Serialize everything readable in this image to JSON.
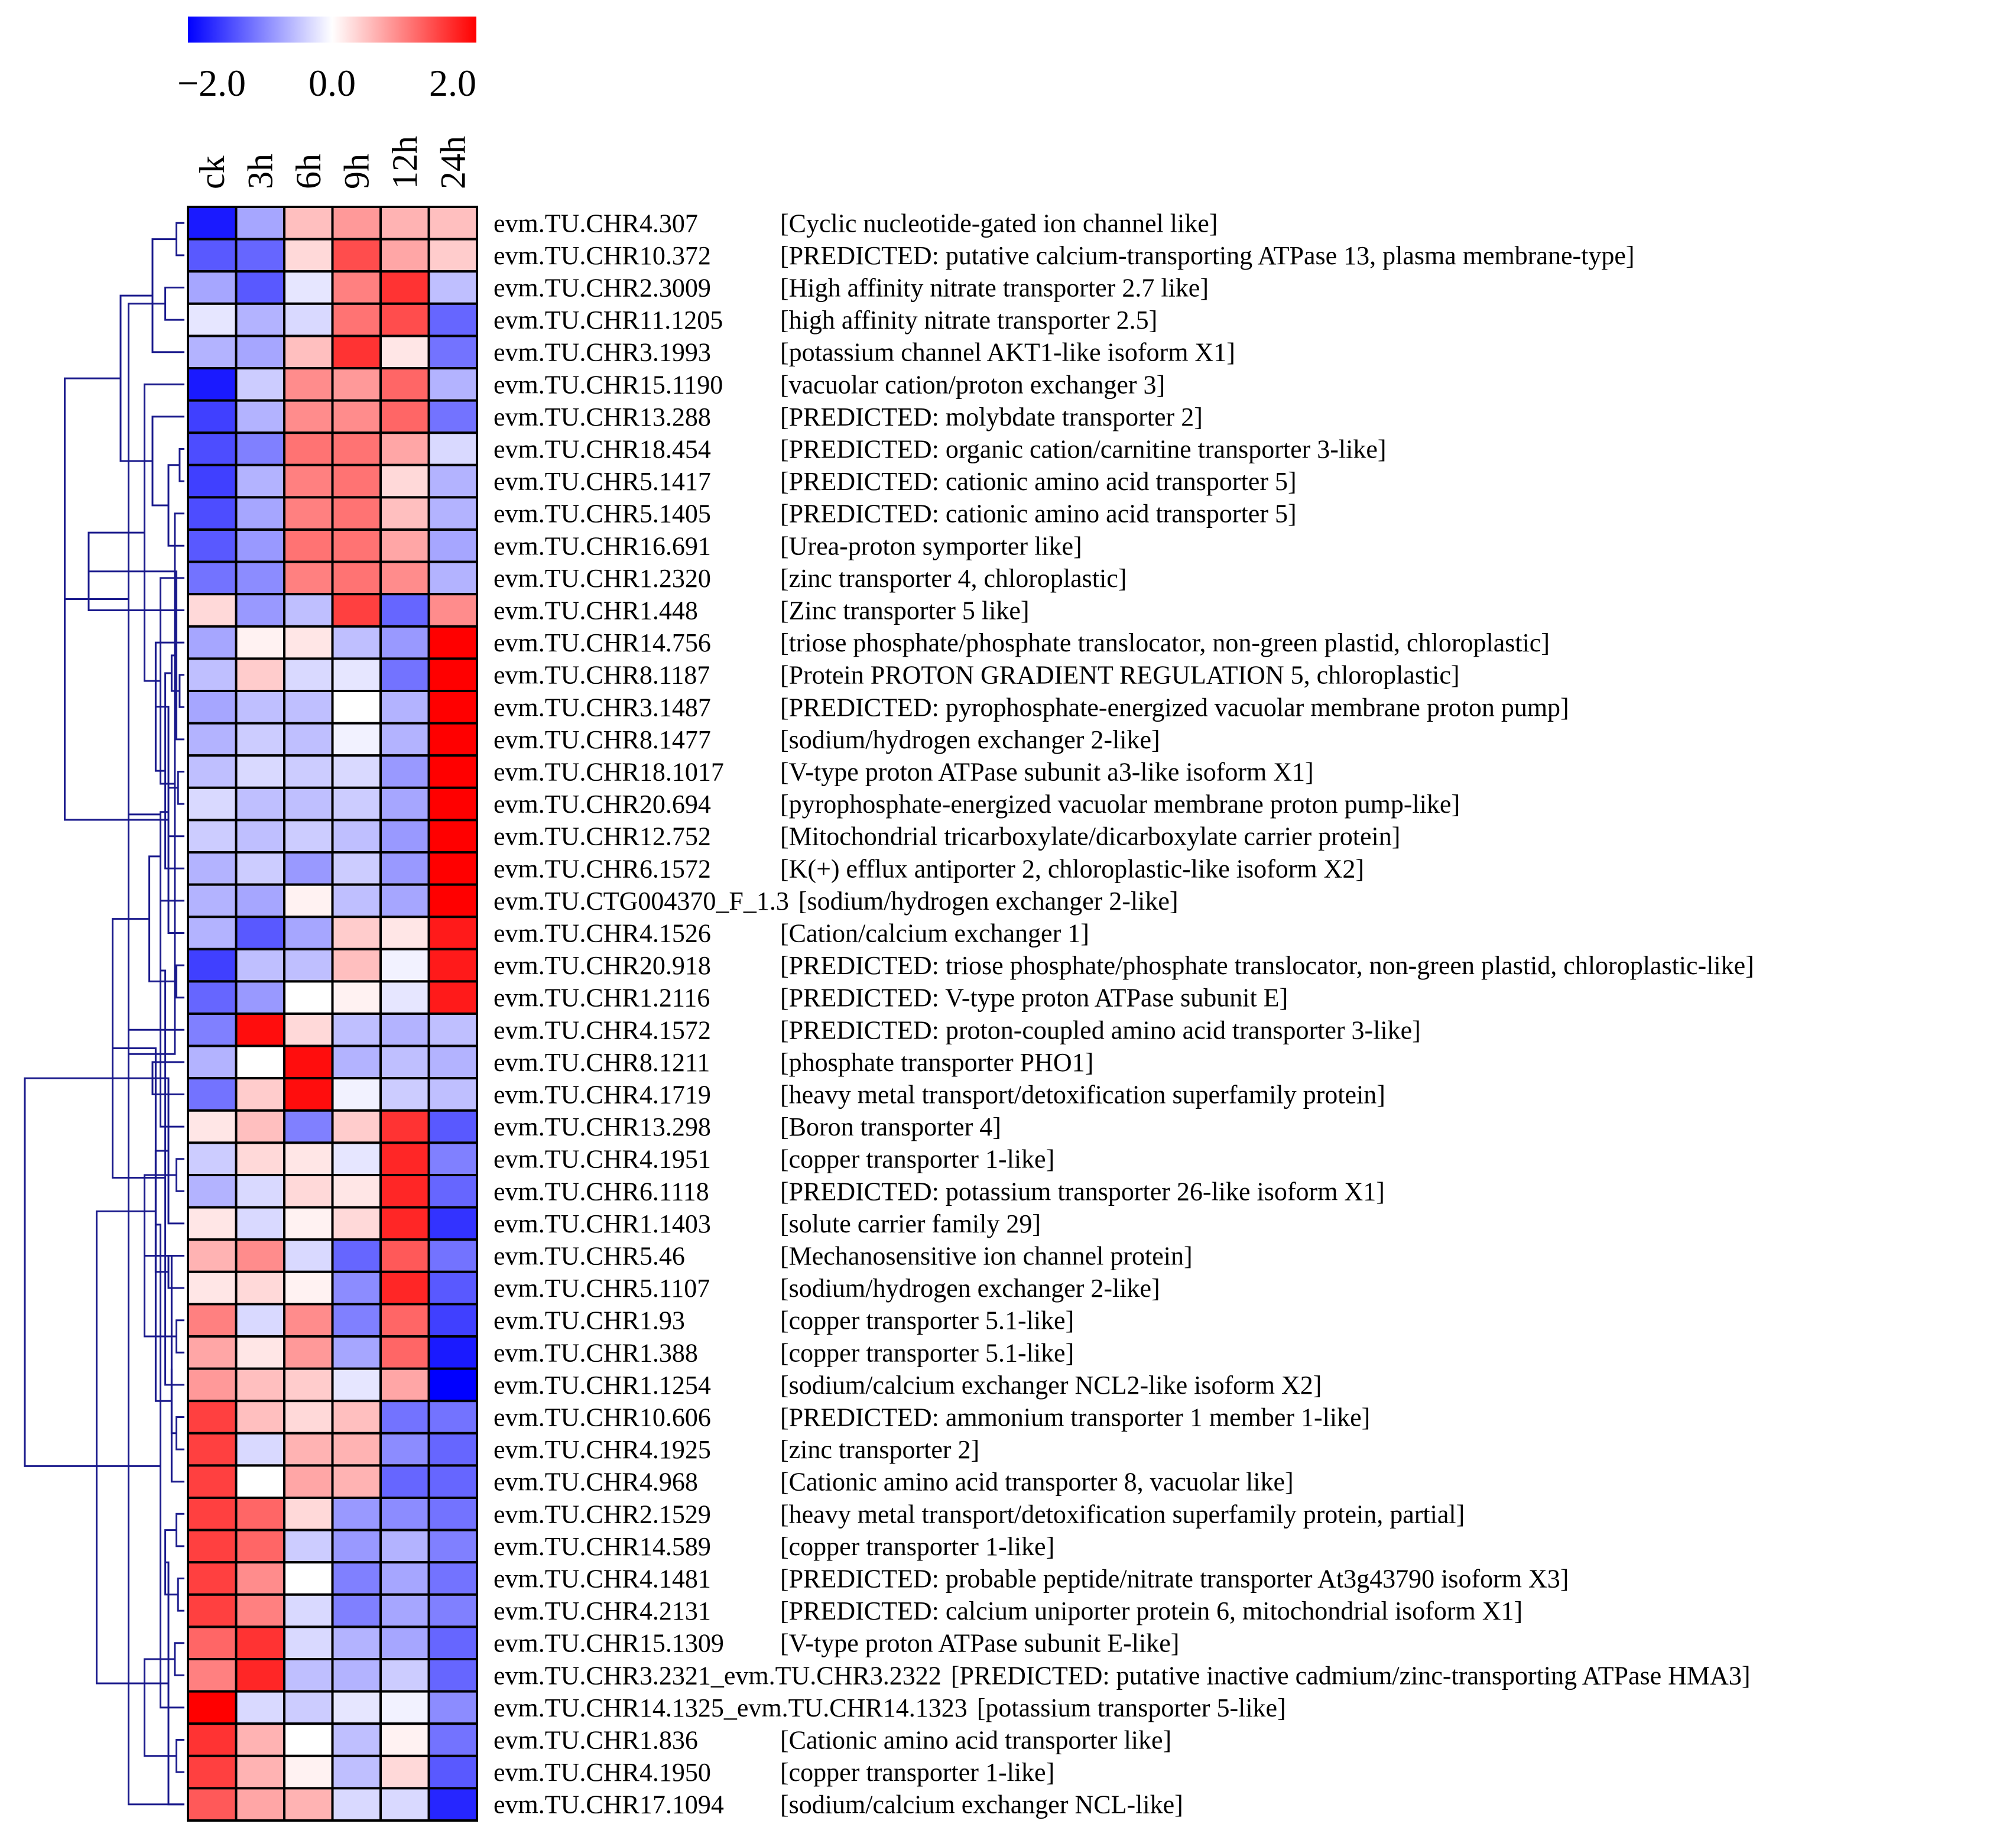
{
  "chart_data": {
    "type": "heatmap",
    "color_scale": {
      "min": -2.0,
      "max": 2.0,
      "low_color": "#0000ff",
      "mid_color": "#ffffff",
      "high_color": "#ff0000",
      "tick_labels": [
        "−2.0",
        "0.0",
        "2.0"
      ]
    },
    "columns": [
      "ck",
      "3h",
      "6h",
      "9h",
      "12h",
      "24h"
    ],
    "rows": [
      {
        "id": "evm.TU.CHR4.307",
        "desc": "[Cyclic nucleotide-gated ion channel like]",
        "values": [
          -1.8,
          -0.7,
          0.5,
          0.8,
          0.6,
          0.5
        ]
      },
      {
        "id": "evm.TU.CHR10.372",
        "desc": "[PREDICTED: putative calcium-transporting ATPase 13, plasma membrane-type]",
        "values": [
          -1.3,
          -1.2,
          0.3,
          1.4,
          0.7,
          0.4
        ]
      },
      {
        "id": "evm.TU.CHR2.3009",
        "desc": "[High affinity nitrate transporter 2.7 like]",
        "values": [
          -0.7,
          -1.3,
          -0.2,
          1.0,
          1.6,
          -0.5
        ]
      },
      {
        "id": "evm.TU.CHR11.1205",
        "desc": "[high affinity nitrate transporter 2.5]",
        "values": [
          -0.2,
          -0.6,
          -0.3,
          1.1,
          1.4,
          -1.2
        ]
      },
      {
        "id": "evm.TU.CHR3.1993",
        "desc": "[potassium channel AKT1-like isoform X1]",
        "values": [
          -0.6,
          -0.7,
          0.5,
          1.6,
          0.2,
          -1.1
        ]
      },
      {
        "id": "evm.TU.CHR15.1190",
        "desc": "[vacuolar cation/proton exchanger 3]",
        "values": [
          -1.8,
          -0.4,
          0.9,
          0.8,
          1.2,
          -0.6
        ]
      },
      {
        "id": "evm.TU.CHR13.288",
        "desc": "[PREDICTED: molybdate transporter 2]",
        "values": [
          -1.5,
          -0.6,
          0.9,
          0.9,
          1.2,
          -1.1
        ]
      },
      {
        "id": "evm.TU.CHR18.454",
        "desc": "[PREDICTED: organic cation/carnitine transporter 3-like]",
        "values": [
          -1.4,
          -1.0,
          1.1,
          1.1,
          0.7,
          -0.3
        ]
      },
      {
        "id": "evm.TU.CHR5.1417",
        "desc": "[PREDICTED: cationic amino acid transporter 5]",
        "values": [
          -1.5,
          -0.6,
          1.0,
          1.1,
          0.3,
          -0.6
        ]
      },
      {
        "id": "evm.TU.CHR5.1405",
        "desc": "[PREDICTED: cationic amino acid transporter 5]",
        "values": [
          -1.4,
          -0.7,
          1.0,
          1.1,
          0.5,
          -0.6
        ]
      },
      {
        "id": "evm.TU.CHR16.691",
        "desc": "[Urea-proton symporter like]",
        "values": [
          -1.3,
          -0.8,
          1.1,
          1.1,
          0.7,
          -0.7
        ]
      },
      {
        "id": "evm.TU.CHR1.2320",
        "desc": "[zinc transporter 4, chloroplastic]",
        "values": [
          -1.1,
          -0.9,
          1.0,
          1.1,
          0.9,
          -0.6
        ]
      },
      {
        "id": "evm.TU.CHR1.448",
        "desc": "[Zinc transporter 5 like]",
        "values": [
          0.3,
          -0.8,
          -0.5,
          1.5,
          -1.2,
          0.9
        ]
      },
      {
        "id": "evm.TU.CHR14.756",
        "desc": "[triose phosphate/phosphate translocator, non-green plastid, chloroplastic]",
        "values": [
          -0.7,
          0.1,
          0.2,
          -0.5,
          -0.8,
          2.0
        ]
      },
      {
        "id": "evm.TU.CHR8.1187",
        "desc": "[Protein PROTON GRADIENT REGULATION 5, chloroplastic]",
        "values": [
          -0.5,
          0.4,
          -0.3,
          -0.2,
          -1.1,
          2.0
        ]
      },
      {
        "id": "evm.TU.CHR3.1487",
        "desc": "[PREDICTED: pyrophosphate-energized vacuolar membrane proton pump]",
        "values": [
          -0.7,
          -0.5,
          -0.5,
          0.0,
          -0.6,
          2.0
        ]
      },
      {
        "id": "evm.TU.CHR8.1477",
        "desc": "[sodium/hydrogen exchanger 2-like]",
        "values": [
          -0.6,
          -0.4,
          -0.5,
          -0.1,
          -0.6,
          2.0
        ]
      },
      {
        "id": "evm.TU.CHR18.1017",
        "desc": "[V-type proton ATPase subunit a3-like isoform X1]",
        "values": [
          -0.5,
          -0.3,
          -0.4,
          -0.3,
          -0.8,
          2.0
        ]
      },
      {
        "id": "evm.TU.CHR20.694",
        "desc": "[pyrophosphate-energized vacuolar membrane proton pump-like]",
        "values": [
          -0.3,
          -0.5,
          -0.5,
          -0.4,
          -0.7,
          2.0
        ]
      },
      {
        "id": "evm.TU.CHR12.752",
        "desc": "[Mitochondrial tricarboxylate/dicarboxylate carrier protein]",
        "values": [
          -0.4,
          -0.5,
          -0.4,
          -0.5,
          -0.8,
          2.0
        ]
      },
      {
        "id": "evm.TU.CHR6.1572",
        "desc": "[K(+) efflux antiporter 2, chloroplastic-like isoform X2]",
        "values": [
          -0.6,
          -0.4,
          -0.8,
          -0.4,
          -0.8,
          2.0
        ]
      },
      {
        "id": "evm.TU.CTG004370_F_1.3",
        "desc": "[sodium/hydrogen exchanger 2-like]",
        "values": [
          -0.6,
          -0.7,
          0.1,
          -0.5,
          -0.7,
          2.0
        ]
      },
      {
        "id": "evm.TU.CHR4.1526",
        "desc": "[Cation/calcium exchanger 1]",
        "values": [
          -0.6,
          -1.3,
          -0.7,
          0.4,
          0.2,
          1.8
        ]
      },
      {
        "id": "evm.TU.CHR20.918",
        "desc": "[PREDICTED: triose phosphate/phosphate translocator, non-green plastid, chloroplastic-like]",
        "values": [
          -1.5,
          -0.5,
          -0.5,
          0.5,
          -0.1,
          1.8
        ]
      },
      {
        "id": "evm.TU.CHR1.2116",
        "desc": "[PREDICTED: V-type proton ATPase subunit E]",
        "values": [
          -1.2,
          -0.8,
          0.0,
          0.1,
          -0.2,
          1.8
        ]
      },
      {
        "id": "evm.TU.CHR4.1572",
        "desc": "[PREDICTED: proton-coupled amino acid transporter 3-like]",
        "values": [
          -1.0,
          1.9,
          0.3,
          -0.5,
          -0.6,
          -0.5
        ]
      },
      {
        "id": "evm.TU.CHR8.1211",
        "desc": "[phosphate transporter PHO1]",
        "values": [
          -0.6,
          0.0,
          1.9,
          -0.6,
          -0.5,
          -0.6
        ]
      },
      {
        "id": "evm.TU.CHR4.1719",
        "desc": "[heavy metal transport/detoxification superfamily protein]",
        "values": [
          -1.1,
          0.4,
          1.9,
          -0.1,
          -0.4,
          -0.5
        ]
      },
      {
        "id": "evm.TU.CHR13.298",
        "desc": "[Boron transporter 4]",
        "values": [
          0.2,
          0.5,
          -1.0,
          0.4,
          1.6,
          -1.3
        ]
      },
      {
        "id": "evm.TU.CHR4.1951",
        "desc": "[copper transporter 1-like]",
        "values": [
          -0.4,
          0.3,
          0.2,
          -0.2,
          1.7,
          -1.0
        ]
      },
      {
        "id": "evm.TU.CHR6.1118",
        "desc": "[PREDICTED: potassium transporter 26-like isoform X1]",
        "values": [
          -0.6,
          -0.3,
          0.3,
          0.2,
          1.7,
          -1.2
        ]
      },
      {
        "id": "evm.TU.CHR1.1403",
        "desc": "[solute carrier family 29]",
        "values": [
          0.2,
          -0.3,
          0.1,
          0.3,
          1.7,
          -1.6
        ]
      },
      {
        "id": "evm.TU.CHR5.46",
        "desc": "[Mechanosensitive ion channel protein]",
        "values": [
          0.6,
          0.9,
          -0.3,
          -1.2,
          1.3,
          -1.1
        ]
      },
      {
        "id": "evm.TU.CHR5.1107",
        "desc": "[sodium/hydrogen exchanger 2-like]",
        "values": [
          0.2,
          0.3,
          0.1,
          -0.9,
          1.7,
          -1.3
        ]
      },
      {
        "id": "evm.TU.CHR1.93",
        "desc": "[copper transporter 5.1-like]",
        "values": [
          1.0,
          -0.3,
          0.9,
          -1.0,
          1.2,
          -1.5
        ]
      },
      {
        "id": "evm.TU.CHR1.388",
        "desc": "[copper transporter 5.1-like]",
        "values": [
          0.7,
          0.2,
          0.8,
          -0.7,
          1.2,
          -1.8
        ]
      },
      {
        "id": "evm.TU.CHR1.1254",
        "desc": "[sodium/calcium exchanger NCL2-like isoform X2]",
        "values": [
          0.8,
          0.5,
          0.4,
          -0.2,
          0.7,
          -2.0
        ]
      },
      {
        "id": "evm.TU.CHR10.606",
        "desc": "[PREDICTED: ammonium transporter 1 member 1-like]",
        "values": [
          1.5,
          0.5,
          0.3,
          0.5,
          -1.1,
          -1.1
        ]
      },
      {
        "id": "evm.TU.CHR4.1925",
        "desc": "[zinc transporter 2]",
        "values": [
          1.5,
          -0.3,
          0.6,
          0.6,
          -0.9,
          -1.2
        ]
      },
      {
        "id": "evm.TU.CHR4.968",
        "desc": "[Cationic amino acid transporter 8, vacuolar like]",
        "values": [
          1.5,
          0.0,
          0.7,
          0.6,
          -1.2,
          -1.2
        ]
      },
      {
        "id": "evm.TU.CHR2.1529",
        "desc": "[heavy metal transport/detoxification superfamily protein, partial]",
        "values": [
          1.5,
          1.2,
          0.3,
          -0.8,
          -0.9,
          -1.1
        ]
      },
      {
        "id": "evm.TU.CHR14.589",
        "desc": "[copper transporter 1-like]",
        "values": [
          1.5,
          1.2,
          -0.4,
          -0.8,
          -0.6,
          -1.0
        ]
      },
      {
        "id": "evm.TU.CHR4.1481",
        "desc": "[PREDICTED: probable peptide/nitrate transporter At3g43790 isoform X3]",
        "values": [
          1.5,
          0.9,
          0.0,
          -1.0,
          -0.7,
          -1.1
        ]
      },
      {
        "id": "evm.TU.CHR4.2131",
        "desc": "[PREDICTED: calcium uniporter protein 6, mitochondrial isoform X1]",
        "values": [
          1.5,
          1.0,
          -0.3,
          -1.0,
          -0.7,
          -1.0
        ]
      },
      {
        "id": "evm.TU.CHR15.1309",
        "desc": "[V-type proton ATPase subunit E-like]",
        "values": [
          1.2,
          1.6,
          -0.3,
          -0.6,
          -0.7,
          -1.2
        ]
      },
      {
        "id": "evm.TU.CHR3.2321_evm.TU.CHR3.2322",
        "desc": "[PREDICTED: putative inactive cadmium/zinc-transporting ATPase HMA3]",
        "values": [
          1.0,
          1.7,
          -0.5,
          -0.6,
          -0.4,
          -1.2
        ]
      },
      {
        "id": "evm.TU.CHR14.1325_evm.TU.CHR14.1323",
        "desc": "[potassium transporter 5-like]",
        "values": [
          2.0,
          -0.3,
          -0.4,
          -0.2,
          -0.1,
          -0.9
        ]
      },
      {
        "id": "evm.TU.CHR1.836",
        "desc": "[Cationic amino acid transporter like]",
        "values": [
          1.6,
          0.6,
          0.0,
          -0.5,
          0.1,
          -1.1
        ]
      },
      {
        "id": "evm.TU.CHR4.1950",
        "desc": "[copper transporter 1-like]",
        "values": [
          1.5,
          0.6,
          0.1,
          -0.5,
          0.3,
          -1.3
        ]
      },
      {
        "id": "evm.TU.CHR17.1094",
        "desc": "[sodium/calcium exchanger NCL-like]",
        "values": [
          1.3,
          0.7,
          0.6,
          -0.3,
          -0.3,
          -1.7
        ]
      }
    ],
    "dendrogram": [
      [
        0,
        1,
        0.05
      ],
      [
        2,
        3,
        0.12
      ],
      [
        50,
        4,
        0.2
      ],
      [
        49,
        51,
        0.35
      ],
      [
        7,
        8,
        0.03
      ],
      [
        53,
        9,
        0.06
      ],
      [
        54,
        10,
        0.1
      ],
      [
        55,
        11,
        0.15
      ],
      [
        6,
        56,
        0.2
      ],
      [
        5,
        57,
        0.25
      ],
      [
        52,
        58,
        0.4
      ],
      [
        59,
        12,
        0.6
      ],
      [
        14,
        15,
        0.03
      ],
      [
        61,
        16,
        0.05
      ],
      [
        17,
        18,
        0.04
      ],
      [
        62,
        63,
        0.08
      ],
      [
        64,
        19,
        0.1
      ],
      [
        65,
        20,
        0.12
      ],
      [
        66,
        21,
        0.15
      ],
      [
        13,
        67,
        0.18
      ],
      [
        23,
        24,
        0.05
      ],
      [
        22,
        69,
        0.1
      ],
      [
        68,
        70,
        0.22
      ],
      [
        60,
        71,
        0.75
      ],
      [
        26,
        27,
        0.2
      ],
      [
        25,
        73,
        0.35
      ],
      [
        29,
        30,
        0.05
      ],
      [
        74,
        31,
        0.1
      ],
      [
        28,
        75,
        0.15
      ],
      [
        32,
        33,
        0.1
      ],
      [
        34,
        35,
        0.05
      ],
      [
        36,
        78,
        0.12
      ],
      [
        77,
        79,
        0.18
      ],
      [
        76,
        80,
        0.25
      ],
      [
        72,
        81,
        0.45
      ],
      [
        37,
        38,
        0.05
      ],
      [
        83,
        39,
        0.08
      ],
      [
        40,
        41,
        0.05
      ],
      [
        42,
        43,
        0.04
      ],
      [
        85,
        86,
        0.08
      ],
      [
        44,
        45,
        0.06
      ],
      [
        87,
        88,
        0.12
      ],
      [
        84,
        89,
        0.18
      ],
      [
        47,
        48,
        0.05
      ],
      [
        91,
        49,
        0.1
      ],
      [
        46,
        92,
        0.15
      ],
      [
        90,
        93,
        0.25
      ],
      [
        82,
        94,
        0.55
      ],
      [
        74,
        95,
        1.0
      ]
    ]
  }
}
